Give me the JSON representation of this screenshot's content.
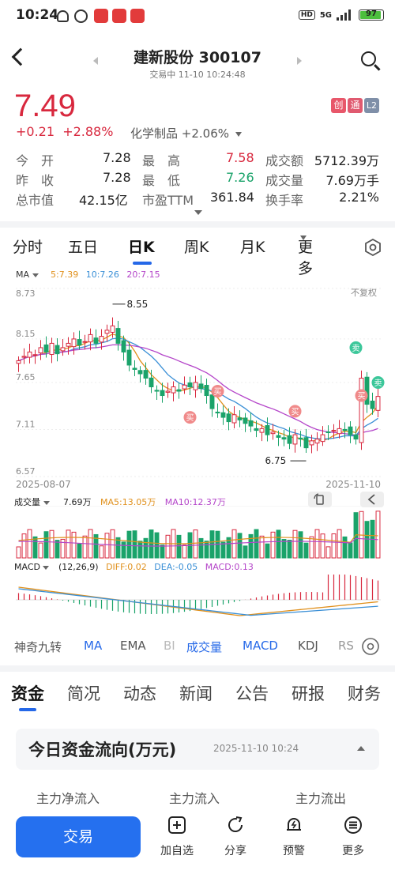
{
  "status_bar": {
    "time": "10:24",
    "network": "5G",
    "battery": "97"
  },
  "header": {
    "title": "建新股份 300107",
    "subtitle": "交易中 11-10 10:24:48"
  },
  "quote": {
    "price": "7.49",
    "change": "+0.21",
    "change_pct": "+2.88%",
    "sector": "化学制品 +2.06%",
    "badges": [
      "创",
      "通",
      "L2"
    ]
  },
  "stats": [
    [
      {
        "label": "今　开",
        "value": "7.28",
        "color": "default"
      },
      {
        "label": "最　高",
        "value": "7.58",
        "color": "red"
      },
      {
        "label": "成交额",
        "value": "5712.39万",
        "color": "default"
      }
    ],
    [
      {
        "label": "昨　收",
        "value": "7.28",
        "color": "default"
      },
      {
        "label": "最　低",
        "value": "7.26",
        "color": "green"
      },
      {
        "label": "成交量",
        "value": "7.69万手",
        "color": "default"
      }
    ],
    [
      {
        "label": "总市值",
        "value": "42.15亿",
        "color": "default"
      },
      {
        "label": "市盈TTM",
        "value": "361.84",
        "color": "default"
      },
      {
        "label": "换手率",
        "value": "2.21%",
        "color": "default"
      }
    ]
  ],
  "chart_tabs": [
    "分时",
    "五日",
    "日K",
    "周K",
    "月K",
    "更多"
  ],
  "chart_tab_active": "日K",
  "kline": {
    "ma_label": "MA",
    "ma5": "5:7.39",
    "ma10": "10:7.26",
    "ma20": "20:7.15",
    "adjust": "不复权",
    "y_ticks": [
      "8.73",
      "8.15",
      "7.65",
      "7.11",
      "6.57"
    ],
    "date_start": "2025-08-07",
    "date_end": "2025-11-10",
    "high_label": "8.55",
    "low_label": "6.75",
    "signals": [
      "买",
      "买",
      "买",
      "买",
      "卖",
      "卖"
    ]
  },
  "volume": {
    "label": "成交量",
    "value": "7.69万",
    "ma5": "MA5:13.05万",
    "ma10": "MA10:12.37万"
  },
  "macd": {
    "label": "MACD",
    "params": "(12,26,9)",
    "diff": "DIFF:0.02",
    "dea": "DEA:-0.05",
    "macd": "MACD:0.13"
  },
  "indicator_tabs": [
    "神奇九转",
    "MA",
    "EMA",
    "BI",
    "成交量",
    "MACD",
    "KDJ",
    "RS"
  ],
  "content_tabs": [
    "资金",
    "简况",
    "动态",
    "新闻",
    "公告",
    "研报",
    "财务"
  ],
  "fund_flow": {
    "title": "今日资金流向(万元)",
    "date": "2025-11-10 10:24",
    "columns": [
      "主力净流入",
      "主力流入",
      "主力流出"
    ]
  },
  "bottom_bar": {
    "trade": "交易",
    "actions": [
      "加自选",
      "分享",
      "预警",
      "更多"
    ]
  },
  "colors": {
    "up": "#d8283e",
    "down": "#1aa36a",
    "accent": "#2568e8",
    "ma5": "#e0901c",
    "ma10": "#3a8fd6",
    "ma20": "#b445c9"
  }
}
